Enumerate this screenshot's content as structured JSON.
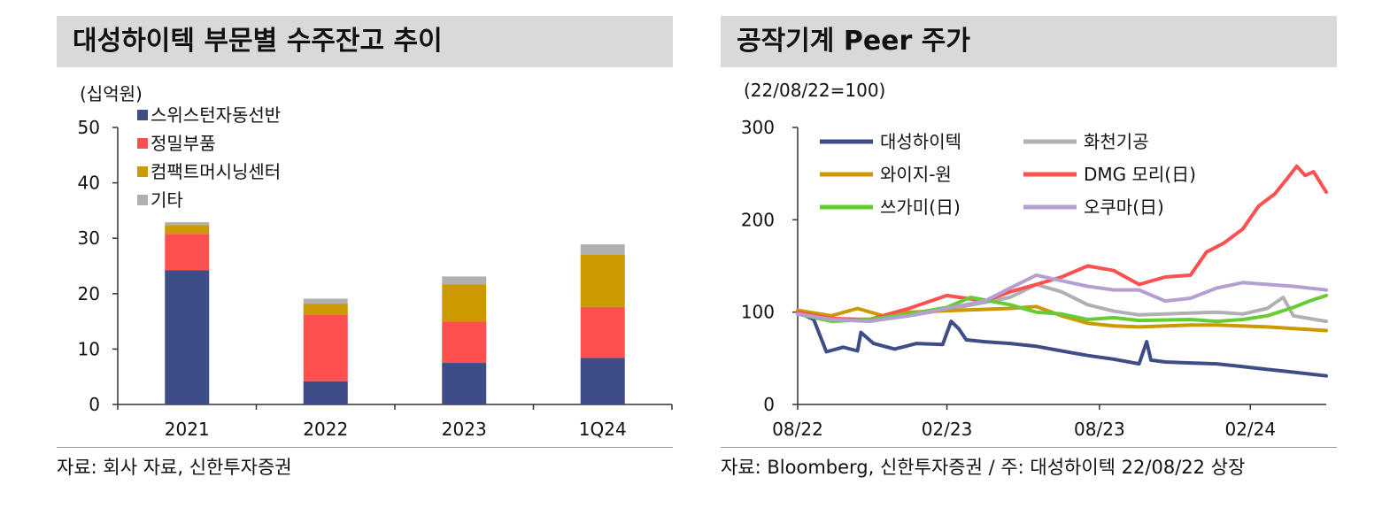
{
  "left": {
    "title": "대성하이텍 부문별 수주잔고 추이",
    "unit": "(십억원)",
    "source": "자료: 회사 자료, 신한투자증권"
  },
  "right": {
    "title": "공작기계 Peer 주가",
    "unit": "(22/08/22=100)",
    "source": "자료: Bloomberg, 신한투자증권 / 주: 대성하이텍 22/08/22 상장"
  },
  "chart_data": [
    {
      "type": "bar",
      "stacked": true,
      "title": "대성하이텍 부문별 수주잔고 추이",
      "ylabel": "(십억원)",
      "ylim": [
        0,
        50
      ],
      "yticks": [
        0,
        10,
        20,
        30,
        40,
        50
      ],
      "categories": [
        "2021",
        "2022",
        "2023",
        "1Q24"
      ],
      "legend_position": "top-left",
      "series": [
        {
          "name": "스위스턴자동선반",
          "color": "#3f4d87",
          "values": [
            24.2,
            4.2,
            7.5,
            8.4
          ]
        },
        {
          "name": "정밀부품",
          "color": "#ff5050",
          "values": [
            6.6,
            12.0,
            7.5,
            9.2
          ]
        },
        {
          "name": "컴팩트머시닝센터",
          "color": "#cc9a00",
          "values": [
            1.6,
            2.0,
            6.7,
            9.4
          ]
        },
        {
          "name": "기타",
          "color": "#b0b0b0",
          "values": [
            0.5,
            0.9,
            1.4,
            1.9
          ]
        }
      ]
    },
    {
      "type": "line",
      "title": "공작기계 Peer 주가",
      "ylabel": "(22/08/22=100)",
      "ylim": [
        0,
        300
      ],
      "yticks": [
        0,
        100,
        200,
        300
      ],
      "xticks": [
        "08/22",
        "02/23",
        "08/23",
        "02/24"
      ],
      "xrange": [
        "2022-08-22",
        "2024-05-10"
      ],
      "legend_position": "top-left",
      "series": [
        {
          "name": "대성하이텍",
          "color": "#3f4d87",
          "x": [
            "2022-08-22",
            "2022-09-10",
            "2022-09-25",
            "2022-10-15",
            "2022-11-01",
            "2022-11-05",
            "2022-11-20",
            "2022-12-15",
            "2023-01-10",
            "2023-02-10",
            "2023-02-20",
            "2023-03-01",
            "2023-03-10",
            "2023-04-01",
            "2023-05-01",
            "2023-06-01",
            "2023-07-01",
            "2023-08-01",
            "2023-09-01",
            "2023-10-01",
            "2023-10-10",
            "2023-10-15",
            "2023-11-01",
            "2023-12-01",
            "2024-01-01",
            "2024-02-01",
            "2024-03-01",
            "2024-04-01",
            "2024-05-10"
          ],
          "values": [
            100,
            92,
            57,
            62,
            58,
            78,
            66,
            60,
            66,
            65,
            90,
            82,
            70,
            68,
            66,
            63,
            58,
            53,
            49,
            44,
            68,
            48,
            46,
            45,
            44,
            41,
            38,
            35,
            31
          ]
        },
        {
          "name": "화천기공",
          "color": "#b0b0b0",
          "x": [
            "2022-08-22",
            "2022-10-01",
            "2022-12-01",
            "2023-01-01",
            "2023-03-01",
            "2023-05-01",
            "2023-06-01",
            "2023-07-01",
            "2023-08-01",
            "2023-09-01",
            "2023-10-01",
            "2023-12-01",
            "2024-01-01",
            "2024-02-01",
            "2024-03-01",
            "2024-03-20",
            "2024-04-01",
            "2024-05-10"
          ],
          "values": [
            100,
            91,
            93,
            96,
            105,
            116,
            130,
            122,
            108,
            101,
            97,
            99,
            100,
            98,
            104,
            116,
            96,
            90
          ]
        },
        {
          "name": "와이지-원",
          "color": "#cc9a00",
          "x": [
            "2022-08-22",
            "2022-10-01",
            "2022-11-01",
            "2022-12-01",
            "2023-01-01",
            "2023-03-01",
            "2023-05-01",
            "2023-06-01",
            "2023-07-01",
            "2023-08-01",
            "2023-09-01",
            "2023-10-01",
            "2023-12-01",
            "2024-01-01",
            "2024-03-01",
            "2024-05-10"
          ],
          "values": [
            102,
            96,
            104,
            96,
            100,
            102,
            104,
            106,
            96,
            88,
            85,
            84,
            86,
            86,
            84,
            80
          ]
        },
        {
          "name": "DMG 모리(日)",
          "color": "#ff5050",
          "x": [
            "2022-08-22",
            "2022-10-01",
            "2022-11-15",
            "2023-01-01",
            "2023-02-15",
            "2023-04-01",
            "2023-05-01",
            "2023-06-01",
            "2023-07-01",
            "2023-08-01",
            "2023-09-01",
            "2023-10-01",
            "2023-11-01",
            "2023-12-01",
            "2023-12-20",
            "2024-01-10",
            "2024-02-01",
            "2024-02-20",
            "2024-03-10",
            "2024-03-25",
            "2024-04-05",
            "2024-04-15",
            "2024-04-25",
            "2024-05-10"
          ],
          "values": [
            100,
            93,
            92,
            104,
            118,
            112,
            122,
            130,
            138,
            150,
            145,
            130,
            138,
            140,
            165,
            175,
            190,
            215,
            228,
            245,
            258,
            248,
            252,
            230
          ]
        },
        {
          "name": "쓰가미(日)",
          "color": "#66cc33",
          "x": [
            "2022-08-22",
            "2022-10-01",
            "2022-11-15",
            "2023-01-01",
            "2023-02-15",
            "2023-03-15",
            "2023-05-01",
            "2023-06-01",
            "2023-07-01",
            "2023-08-01",
            "2023-09-01",
            "2023-10-01",
            "2023-12-01",
            "2024-01-01",
            "2024-02-01",
            "2024-03-01",
            "2024-04-01",
            "2024-04-20",
            "2024-05-10"
          ],
          "values": [
            98,
            90,
            92,
            98,
            105,
            116,
            108,
            100,
            98,
            92,
            94,
            91,
            92,
            90,
            92,
            96,
            105,
            112,
            118
          ]
        },
        {
          "name": "오쿠마(日)",
          "color": "#b4a0d0",
          "x": [
            "2022-08-22",
            "2022-10-01",
            "2022-11-15",
            "2023-01-01",
            "2023-02-15",
            "2023-04-01",
            "2023-05-01",
            "2023-06-01",
            "2023-07-01",
            "2023-08-01",
            "2023-09-01",
            "2023-10-01",
            "2023-11-01",
            "2023-12-01",
            "2024-01-01",
            "2024-02-01",
            "2024-03-01",
            "2024-04-01",
            "2024-05-10"
          ],
          "values": [
            98,
            92,
            90,
            96,
            104,
            112,
            126,
            140,
            134,
            128,
            124,
            124,
            112,
            115,
            126,
            132,
            130,
            128,
            124
          ]
        }
      ]
    }
  ]
}
